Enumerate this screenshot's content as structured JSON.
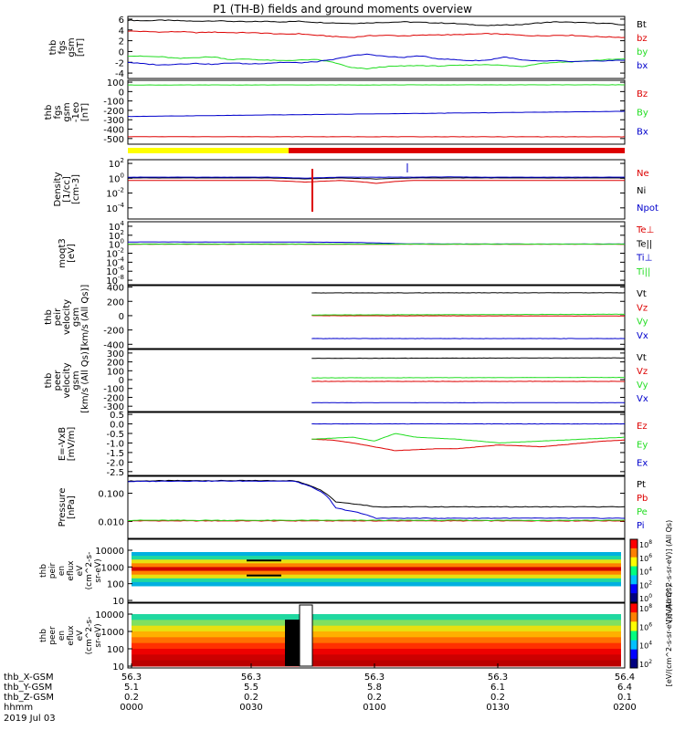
{
  "title": "P1 (TH-B) fields and ground moments overview",
  "colors": {
    "black": "#000000",
    "red": "#dd0000",
    "green": "#22dd22",
    "blue": "#0000cc",
    "yellow": "#ffff00",
    "white": "#ffffff"
  },
  "chart_data": [
    {
      "type": "line",
      "ylabel_lines": [
        "thb",
        "fgs",
        "gsm",
        "[nT]"
      ],
      "yticks": [
        "6",
        "4",
        "2",
        "0",
        "-2",
        "-4"
      ],
      "ylim": [
        -5,
        6.5
      ],
      "legend": [
        "Bt",
        "bz",
        "by",
        "bx"
      ],
      "legend_colors": [
        "#000000",
        "#dd0000",
        "#22dd22",
        "#0000cc"
      ],
      "series": [
        {
          "name": "Bt",
          "values": [
            5.8,
            5.7,
            5.8,
            5.7,
            5.6,
            5.7,
            5.6,
            5.5,
            5.6,
            5.5,
            5.6,
            5.4,
            5.3,
            5.2,
            5.3,
            5.4,
            5.5,
            5.4,
            5.3,
            5.2,
            5.0,
            4.8,
            4.9,
            5.0,
            5.3,
            5.5,
            5.4,
            5.3,
            5.2,
            4.9
          ]
        },
        {
          "name": "bz",
          "values": [
            3.8,
            3.7,
            3.6,
            3.7,
            3.5,
            3.6,
            3.5,
            3.5,
            3.4,
            3.2,
            3.3,
            3.0,
            2.8,
            2.6,
            2.9,
            3.0,
            2.9,
            3.0,
            3.1,
            3.1,
            3.2,
            3.3,
            3.2,
            3.0,
            2.9,
            3.0,
            3.0,
            2.8,
            2.7,
            2.6
          ]
        },
        {
          "name": "by",
          "values": [
            -0.8,
            -0.9,
            -1.0,
            -1.3,
            -1.1,
            -1.0,
            -1.5,
            -1.4,
            -1.6,
            -1.7,
            -1.6,
            -1.5,
            -2.0,
            -3.0,
            -3.2,
            -2.8,
            -2.7,
            -2.6,
            -2.7,
            -2.6,
            -2.5,
            -2.4,
            -2.6,
            -2.8,
            -2.2,
            -2.0,
            -1.9,
            -1.7,
            -1.5,
            -1.4
          ]
        },
        {
          "name": "bx",
          "values": [
            -2.0,
            -2.3,
            -2.5,
            -2.3,
            -2.2,
            -2.4,
            -2.1,
            -2.3,
            -2.2,
            -2.0,
            -2.1,
            -1.9,
            -1.5,
            -0.8,
            -0.5,
            -0.9,
            -1.1,
            -0.8,
            -1.3,
            -1.5,
            -1.7,
            -1.6,
            -1.0,
            -1.6,
            -1.8,
            -1.7,
            -1.9,
            -1.8,
            -1.7,
            -1.6
          ]
        }
      ]
    },
    {
      "type": "line",
      "ylabel_lines": [
        "thb",
        "fgs",
        "gsm",
        "-1eo",
        "[nT]"
      ],
      "yticks": [
        "100",
        "0",
        "-100",
        "-200",
        "-300",
        "-400",
        "-500"
      ],
      "ylim": [
        -560,
        120
      ],
      "legend": [
        "Bz",
        "By",
        "Bx"
      ],
      "legend_colors": [
        "#dd0000",
        "#22dd22",
        "#0000cc"
      ],
      "series": [
        {
          "name": "Bz",
          "values": [
            -480,
            -482
          ]
        },
        {
          "name": "By",
          "values": [
            70,
            72
          ]
        },
        {
          "name": "Bx",
          "values": [
            -265,
            -210
          ]
        }
      ]
    },
    {
      "type": "line",
      "ylabel_lines": [
        "Density",
        "[1/cc]",
        "[cm-3]"
      ],
      "yticks": [
        "10",
        "10",
        "10",
        "10"
      ],
      "ytick_exps": [
        "2",
        "0",
        "-2",
        "-4"
      ],
      "ylim_log": [
        -5.5,
        2.5
      ],
      "legend": [
        "Ne",
        "Ni",
        "Npot"
      ],
      "legend_colors": [
        "#dd0000",
        "#000000",
        "#0000cc"
      ],
      "series": [
        {
          "name": "Ne",
          "values": [
            0.5,
            0.5,
            0.5,
            0.5,
            0.5,
            0.3,
            0.5,
            0.2,
            0.5,
            0.5,
            0.5,
            0.5,
            0.5,
            0.5,
            0.5
          ]
        },
        {
          "name": "Ni",
          "values": [
            1.1,
            1.1,
            1.1,
            1.1,
            1.1,
            0.8,
            1.1,
            0.8,
            1.1,
            1.1,
            1.1,
            1.1,
            1.1,
            1.1,
            1.1
          ]
        },
        {
          "name": "Npot",
          "values": [
            1.4,
            1.4,
            1.4,
            1.4,
            1.4,
            1.0,
            1.4,
            1.4,
            1.4,
            1.5,
            1.4,
            1.4,
            1.4,
            1.4,
            1.4
          ]
        }
      ]
    },
    {
      "type": "line",
      "ylabel_lines": [
        "moqt3",
        "[eV]"
      ],
      "yticks": [
        "10",
        "10",
        "10",
        "10",
        "10",
        "10",
        "10"
      ],
      "ytick_exps": [
        "4",
        "2",
        "0",
        "-2",
        "-4",
        "-6",
        "-8"
      ],
      "ylim_log": [
        -9,
        5
      ],
      "legend": [
        "Te⊥",
        "Te||",
        "Ti⊥",
        "Ti||"
      ],
      "legend_colors": [
        "#dd0000",
        "#000000",
        "#0000cc",
        "#22dd22"
      ],
      "series": [
        {
          "name": "Te⊥",
          "values": [
            1.0,
            1.0,
            1.0,
            1.0,
            1.0,
            1.0,
            1.0,
            1.0,
            1.0,
            1.0
          ]
        },
        {
          "name": "Te||",
          "values": [
            1.1,
            1.1,
            1.1,
            1.1,
            1.1,
            1.1,
            1.1,
            1.1,
            1.1,
            1.1
          ]
        },
        {
          "name": "Ti⊥",
          "values": [
            3.2,
            3.2,
            3.1,
            3.0,
            2.6,
            1.2,
            1.1,
            1.1,
            1.1,
            1.1
          ]
        },
        {
          "name": "Ti||",
          "values": [
            1.05,
            1.05,
            1.05,
            1.05,
            1.05,
            1.05,
            1.05,
            1.05,
            1.05,
            1.05
          ]
        }
      ]
    },
    {
      "type": "line",
      "ylabel_lines": [
        "thb",
        "peir",
        "velocity",
        "gsm",
        "[km/s (All Qs)]"
      ],
      "yticks": [
        "400",
        "200",
        "0",
        "-200",
        "-400"
      ],
      "ylim": [
        -460,
        420
      ],
      "legend": [
        "Vt",
        "Vz",
        "Vy",
        "Vx"
      ],
      "legend_colors": [
        "#000000",
        "#dd0000",
        "#22dd22",
        "#0000cc"
      ],
      "series": [
        {
          "name": "Vt",
          "values": [
            318,
            320
          ]
        },
        {
          "name": "Vz",
          "values": [
            0,
            -5
          ]
        },
        {
          "name": "Vy",
          "values": [
            10,
            20
          ]
        },
        {
          "name": "Vx",
          "values": [
            -320,
            -320
          ]
        }
      ]
    },
    {
      "type": "line",
      "ylabel_lines": [
        "thb",
        "peer",
        "velocity",
        "gsm",
        "[km/s (All Qs)]"
      ],
      "yticks": [
        "300",
        "200",
        "100",
        "0",
        "-100",
        "-200",
        "-300"
      ],
      "ylim": [
        -360,
        340
      ],
      "legend": [
        "Vt",
        "Vz",
        "Vy",
        "Vx"
      ],
      "legend_colors": [
        "#000000",
        "#dd0000",
        "#22dd22",
        "#0000cc"
      ],
      "series": [
        {
          "name": "Vt",
          "values": [
            240,
            245
          ]
        },
        {
          "name": "Vz",
          "values": [
            -20,
            -20
          ]
        },
        {
          "name": "Vy",
          "values": [
            20,
            25
          ]
        },
        {
          "name": "Vx",
          "values": [
            -260,
            -260
          ]
        }
      ]
    },
    {
      "type": "line",
      "ylabel_lines": [
        "E=-VxB",
        "[mV/m]"
      ],
      "yticks": [
        "0.5",
        "0.0",
        "-0.5",
        "-1.0",
        "-1.5",
        "-2.0",
        "-2.5"
      ],
      "ylim": [
        -2.7,
        0.6
      ],
      "legend": [
        "Ez",
        "Ey",
        "Ex"
      ],
      "legend_colors": [
        "#dd0000",
        "#22dd22",
        "#0000cc"
      ],
      "series": [
        {
          "name": "Ez",
          "values": [
            -0.8,
            -0.85,
            -1.0,
            -1.2,
            -1.4,
            -1.35,
            -1.3,
            -1.3,
            -1.2,
            -1.1,
            -1.15,
            -1.2,
            -1.1,
            -1.0,
            -0.9,
            -0.85
          ]
        },
        {
          "name": "Ey",
          "values": [
            -0.8,
            -0.75,
            -0.7,
            -0.9,
            -0.5,
            -0.7,
            -0.75,
            -0.8,
            -0.9,
            -1.0,
            -0.95,
            -0.9,
            -0.85,
            -0.8,
            -0.75,
            -0.7
          ]
        },
        {
          "name": "Ex",
          "values": [
            0.0,
            0.0,
            0.0,
            0.0,
            0.0,
            0.0,
            0.0,
            0.0,
            0.0,
            0.0,
            0.0,
            0.0,
            0.0,
            0.0,
            0.0,
            0.0
          ]
        }
      ]
    },
    {
      "type": "line",
      "ylabel_lines": [
        "Pressure",
        "[nPa]"
      ],
      "yticks": [
        "0.100",
        "0.010"
      ],
      "ylim_log": [
        -2.6,
        -0.4
      ],
      "legend": [
        "Pt",
        "Pb",
        "Pe",
        "Pi"
      ],
      "legend_colors": [
        "#000000",
        "#dd0000",
        "#22dd22",
        "#0000cc"
      ],
      "series": [
        {
          "name": "Pt",
          "values": [
            0.27,
            0.28,
            0.28,
            0.28,
            0.28,
            0.05,
            0.033,
            0.033,
            0.033,
            0.033,
            0.033,
            0.033,
            0.033
          ]
        },
        {
          "name": "Pb",
          "values": [
            0.0105,
            0.0105,
            0.0105,
            0.0105,
            0.0105,
            0.0105,
            0.0105,
            0.0105,
            0.0105,
            0.0105,
            0.0105,
            0.0105,
            0.0105
          ]
        },
        {
          "name": "Pe",
          "values": [
            0.011,
            0.011,
            0.011,
            0.011,
            0.011,
            0.011,
            0.011,
            0.011,
            0.011,
            0.011,
            0.011,
            0.011,
            0.011
          ]
        },
        {
          "name": "Pi",
          "values": [
            0.26,
            0.27,
            0.27,
            0.27,
            0.27,
            0.03,
            0.013,
            0.013,
            0.013,
            0.013,
            0.013,
            0.013,
            0.013
          ]
        }
      ]
    },
    {
      "type": "heatmap",
      "ylabel_lines": [
        "thb",
        "peir",
        "en",
        "eflux",
        "eV",
        "(cm^2-s-",
        "sr-eV)"
      ],
      "yticks": [
        "10000",
        "1000",
        "100",
        "10"
      ],
      "colorbar_label": "[eV/(cm^2-s-sr-eV)] (All Qs)",
      "colorbar_ticks": [
        "10",
        "10",
        "10",
        "10",
        "10"
      ],
      "colorbar_exps": [
        "8",
        "6",
        "4",
        "2",
        "0"
      ]
    },
    {
      "type": "heatmap",
      "ylabel_lines": [
        "thb",
        "peer",
        "en",
        "eflux",
        "eV",
        "(cm^2-s-",
        "sr-eV)"
      ],
      "yticks": [
        "10000",
        "1000",
        "100",
        "10"
      ],
      "colorbar_label": "[eV/(cm^2-s-sr-eV)] (All Qs)",
      "colorbar_ticks": [
        "10",
        "10",
        "10",
        "10"
      ],
      "colorbar_exps": [
        "8",
        "6",
        "4",
        "2"
      ]
    }
  ],
  "xaxis": {
    "rows": [
      {
        "label": "thb_X-GSM",
        "values": [
          "56.3",
          "56.3",
          "56.3",
          "56.3",
          "56.4"
        ]
      },
      {
        "label": "thb_Y-GSM",
        "values": [
          "5.1",
          "5.5",
          "5.8",
          "6.1",
          "6.4"
        ]
      },
      {
        "label": "thb_Z-GSM",
        "values": [
          "0.2",
          "0.2",
          "0.2",
          "0.2",
          "0.1"
        ]
      },
      {
        "label": "hhmm",
        "values": [
          "0000",
          "0030",
          "0100",
          "0130",
          "0200"
        ]
      }
    ],
    "date": "2019 Jul 03"
  }
}
